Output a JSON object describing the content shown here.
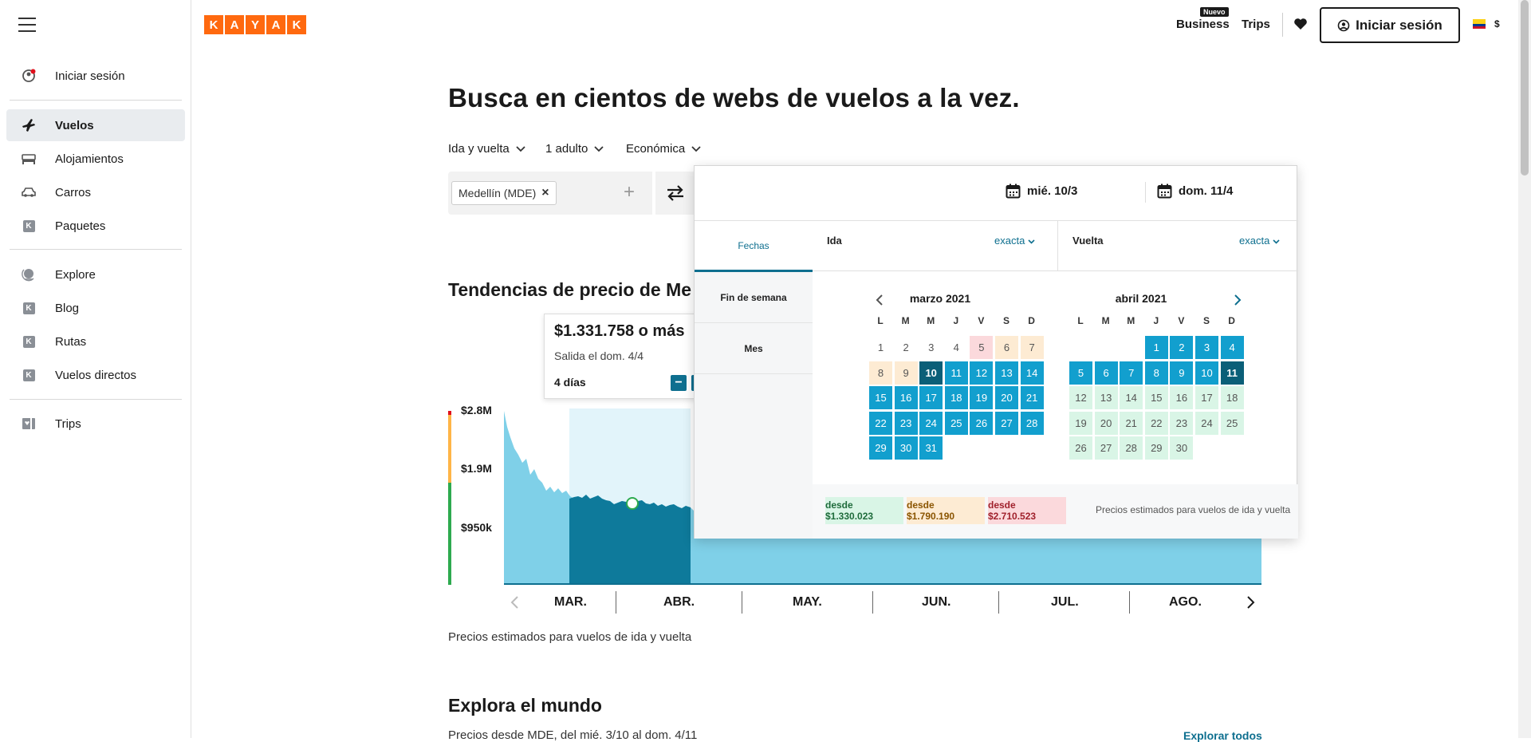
{
  "sidebar": {
    "items": [
      {
        "label": "Iniciar sesión",
        "icon": "user-circle-icon"
      },
      {
        "label": "Vuelos",
        "icon": "airplane-icon"
      },
      {
        "label": "Alojamientos",
        "icon": "bed-icon"
      },
      {
        "label": "Carros",
        "icon": "car-icon"
      },
      {
        "label": "Paquetes",
        "icon": "kayak-k-icon",
        "k": "K"
      },
      {
        "label": "Explore",
        "icon": "globe-icon"
      },
      {
        "label": "Blog",
        "icon": "kayak-k-icon",
        "k": "K"
      },
      {
        "label": "Rutas",
        "icon": "kayak-k-icon",
        "k": "K"
      },
      {
        "label": "Vuelos directos",
        "icon": "kayak-k-icon",
        "k": "K"
      },
      {
        "label": "Trips",
        "icon": "trips-icon"
      }
    ]
  },
  "header": {
    "logo_letters": [
      "K",
      "A",
      "Y",
      "A",
      "K"
    ],
    "business_badge": "Nuevo",
    "business": "Business",
    "trips": "Trips",
    "signin": "Iniciar sesión",
    "currency": "$"
  },
  "search": {
    "hero_title": "Busca en cientos de webs de vuelos a la vez.",
    "trip_type": "Ida y vuelta",
    "passengers": "1 adulto",
    "cabin": "Económica",
    "origin_chip": "Medellín (MDE)",
    "origin_plus": "+"
  },
  "trends": {
    "title": "Tendencias de precio de Me",
    "tooltip_price": "$1.331.758 o más",
    "tooltip_sub": "Salida el dom. 4/4",
    "tooltip_days": "4 días",
    "tooltip_minus": "−",
    "note": "Precios estimados para vuelos de ida y vuelta"
  },
  "chart_data": {
    "type": "area",
    "y_ticks": [
      "$2.8M",
      "$1.9M",
      "$950k"
    ],
    "months": [
      "MAR.",
      "ABR.",
      "MAY.",
      "JUN.",
      "JUL.",
      "AGO."
    ],
    "ylim": [
      0,
      2800000
    ]
  },
  "explore": {
    "title": "Explora el mundo",
    "subtitle": "Precios desde MDE, del mié. 3/10 al dom. 4/11",
    "link": "Explorar todos"
  },
  "datepicker": {
    "depart_value": "mié. 10/3",
    "return_value": "dom. 11/4",
    "tabs": [
      "Fechas",
      "Fin de semana",
      "Mes"
    ],
    "ida_label": "Ida",
    "vuelta_label": "Vuelta",
    "exacta": "exacta",
    "dow": [
      "L",
      "M",
      "M",
      "J",
      "V",
      "S",
      "D"
    ],
    "month1": "marzo 2021",
    "month2": "abril 2021",
    "legend_low": "desde $1.330.023",
    "legend_mid": "desde $1.790.190",
    "legend_high": "desde $2.710.523",
    "legend_note": "Precios estimados para vuelos de ida y vuelta",
    "colors": {
      "low": "#d9f5e6",
      "mid": "#fdebd3",
      "high": "#fbd9dc",
      "range": "#129fce",
      "selected": "#0b5f78"
    }
  }
}
